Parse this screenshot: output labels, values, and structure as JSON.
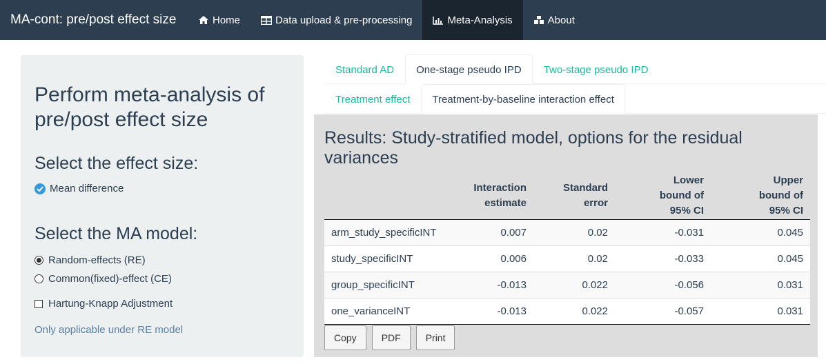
{
  "navbar": {
    "brand": "MA-cont: pre/post effect size",
    "items": [
      {
        "label": "Home",
        "icon": "home-icon"
      },
      {
        "label": "Data upload & pre-processing",
        "icon": "table-icon"
      },
      {
        "label": "Meta-Analysis",
        "icon": "bar-chart-icon",
        "active": true
      },
      {
        "label": "About",
        "icon": "cubes-icon"
      }
    ]
  },
  "sidebar": {
    "title": "Perform meta-analysis of pre/post effect size",
    "effect_heading": "Select the effect size:",
    "effect_option": "Mean difference",
    "model_heading": "Select the MA model:",
    "model_options": [
      {
        "label": "Random-effects (RE)",
        "selected": true
      },
      {
        "label": "Common(fixed)-effect (CE)",
        "selected": false
      }
    ],
    "hk_label": "Hartung-Knapp Adjustment",
    "hk_checked": false,
    "help": "Only applicable under RE model"
  },
  "tabs": {
    "level1": [
      {
        "label": "Standard AD",
        "active": false
      },
      {
        "label": "One-stage pseudo IPD",
        "active": true
      },
      {
        "label": "Two-stage pseudo IPD",
        "active": false
      }
    ],
    "level2": [
      {
        "label": "Treatment effect",
        "active": false
      },
      {
        "label": "Treatment-by-baseline interaction effect",
        "active": true
      }
    ]
  },
  "results": {
    "title": "Results: Study-stratified model, options for the residual variances",
    "headers": [
      "",
      "Interaction estimate",
      "Standard error",
      "Lower bound of 95% CI",
      "Upper bound of 95% CI"
    ],
    "rows": [
      [
        "arm_study_specificINT",
        "0.007",
        "0.02",
        "-0.031",
        "0.045"
      ],
      [
        "study_specificINT",
        "0.006",
        "0.02",
        "-0.033",
        "0.045"
      ],
      [
        "group_specificINT",
        "-0.013",
        "0.022",
        "-0.056",
        "0.031"
      ],
      [
        "one_varianceINT",
        "-0.013",
        "0.022",
        "-0.057",
        "0.031"
      ]
    ],
    "buttons": [
      "Copy",
      "PDF",
      "Print"
    ]
  }
}
